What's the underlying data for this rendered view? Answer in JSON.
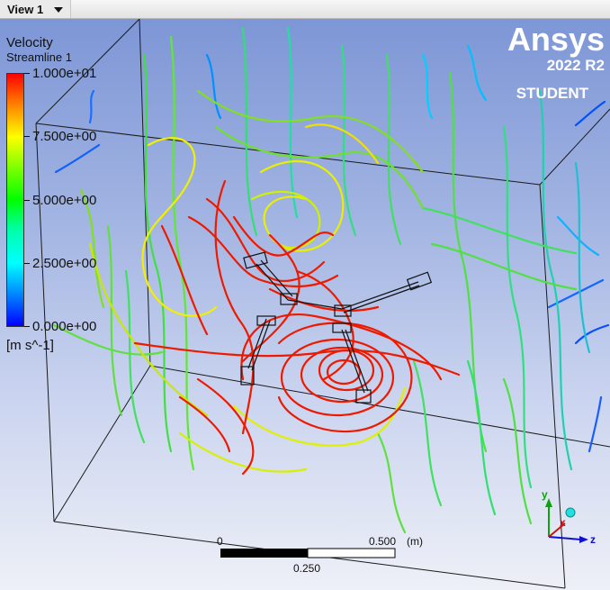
{
  "view_tab": {
    "label": "View 1"
  },
  "legend": {
    "title": "Velocity",
    "subtitle": "Streamline 1",
    "ticks": [
      "1.000e+01",
      "7.500e+00",
      "5.000e+00",
      "2.500e+00",
      "0.000e+00"
    ],
    "units": "[m s^-1]"
  },
  "branding": {
    "name": "Ansys",
    "version": "2022 R2",
    "edition": "STUDENT"
  },
  "scale_bar": {
    "zero": "0",
    "end": "0.500",
    "unit": "(m)",
    "mid": "0.250"
  },
  "axes": {
    "y": "y",
    "x": "x",
    "z": "z"
  },
  "colors": {
    "high": "#ff0000",
    "mid_high": "#ffff00",
    "mid": "#00ff00",
    "mid_low": "#00ffff",
    "low": "#0000ff"
  }
}
